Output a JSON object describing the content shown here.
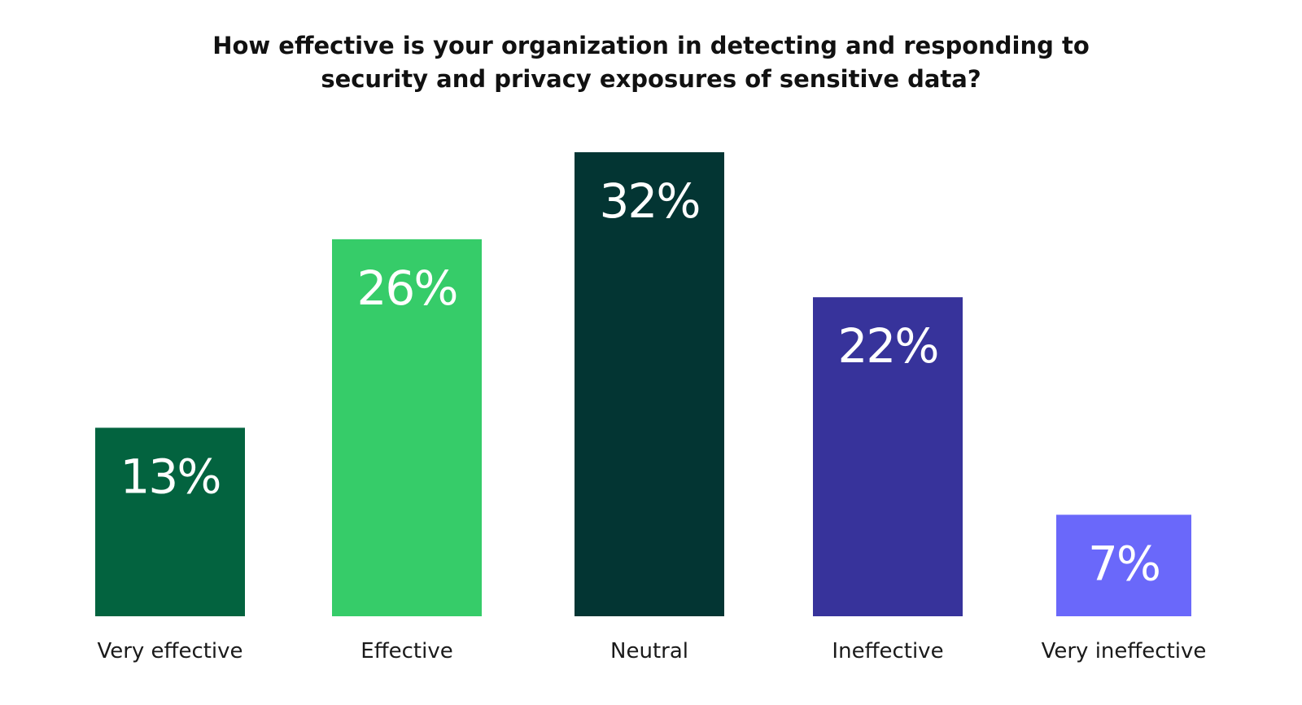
{
  "chart_data": {
    "type": "bar",
    "title_lines": [
      "How effective is your organization in detecting and responding to",
      "security and privacy exposures of sensitive data?"
    ],
    "categories": [
      "Very effective",
      "Effective",
      "Neutral",
      "Ineffective",
      "Very ineffective"
    ],
    "values": [
      13,
      26,
      32,
      22,
      7
    ],
    "value_labels": [
      "13%",
      "26%",
      "32%",
      "22%",
      "7%"
    ],
    "colors": [
      "#03633f",
      "#36cc69",
      "#033533",
      "#37339b",
      "#6a68fa"
    ],
    "ylim": [
      0,
      32
    ],
    "grid": false,
    "legend": "none"
  }
}
